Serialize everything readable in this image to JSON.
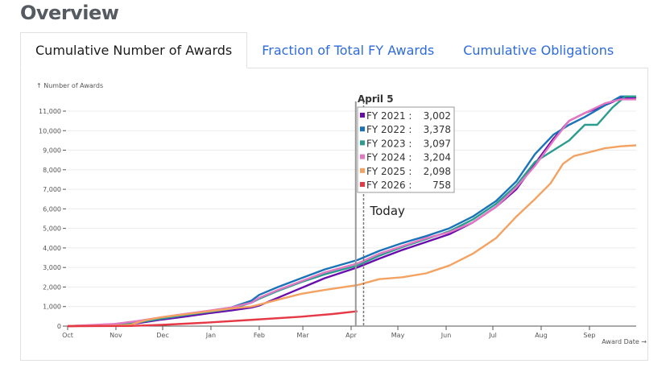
{
  "page": {
    "title": "Overview"
  },
  "tabs": [
    {
      "label": "Cumulative Number of Awards",
      "active": true
    },
    {
      "label": "Fraction of Total FY Awards",
      "active": false
    },
    {
      "label": "Cumulative Obligations",
      "active": false
    }
  ],
  "chart_data": {
    "type": "line",
    "title": "",
    "ylabel": "↑ Number of Awards",
    "xlabel": "Award Date →",
    "ylim": [
      0,
      11000
    ],
    "yticks": [
      0,
      1000,
      2000,
      3000,
      4000,
      5000,
      6000,
      7000,
      8000,
      9000,
      10000,
      11000
    ],
    "ytick_labels": [
      "0",
      "1,000",
      "2,000",
      "3,000",
      "4,000",
      "5,000",
      "6,000",
      "7,000",
      "8,000",
      "9,000",
      "10,000",
      "11,000"
    ],
    "xlim_days": [
      0,
      365
    ],
    "xticks_days": [
      0,
      31,
      61,
      92,
      123,
      151,
      182,
      212,
      243,
      273,
      304,
      335
    ],
    "xtick_labels": [
      "Oct",
      "Nov",
      "Dec",
      "Jan",
      "Feb",
      "Mar",
      "Apr",
      "May",
      "Jun",
      "Jul",
      "Aug",
      "Sep"
    ],
    "grid": true,
    "hover": {
      "label": "April 5",
      "day": 186,
      "values": [
        {
          "name": "FY 2021 :",
          "value": "3,002"
        },
        {
          "name": "FY 2022 :",
          "value": "3,378"
        },
        {
          "name": "FY 2023 :",
          "value": "3,097"
        },
        {
          "name": "FY 2024 :",
          "value": "3,204"
        },
        {
          "name": "FY 2025 :",
          "value": "2,098"
        },
        {
          "name": "FY 2026 :",
          "value": "758"
        }
      ]
    },
    "today": {
      "label": "Today",
      "day": 190
    },
    "series": [
      {
        "name": "FY 2021",
        "color": "#6a0dad",
        "points": [
          [
            0,
            0
          ],
          [
            30,
            40
          ],
          [
            45,
            150
          ],
          [
            60,
            330
          ],
          [
            75,
            480
          ],
          [
            90,
            650
          ],
          [
            105,
            800
          ],
          [
            118,
            950
          ],
          [
            123,
            1050
          ],
          [
            135,
            1450
          ],
          [
            150,
            1950
          ],
          [
            165,
            2450
          ],
          [
            186,
            3002
          ],
          [
            200,
            3450
          ],
          [
            215,
            3900
          ],
          [
            230,
            4300
          ],
          [
            245,
            4700
          ],
          [
            260,
            5300
          ],
          [
            275,
            6100
          ],
          [
            288,
            7000
          ],
          [
            300,
            8300
          ],
          [
            312,
            9600
          ],
          [
            322,
            10500
          ],
          [
            332,
            10900
          ],
          [
            345,
            11300
          ],
          [
            355,
            11650
          ],
          [
            365,
            11700
          ]
        ]
      },
      {
        "name": "FY 2022",
        "color": "#1a73b8",
        "points": [
          [
            0,
            0
          ],
          [
            30,
            80
          ],
          [
            45,
            200
          ],
          [
            60,
            400
          ],
          [
            75,
            580
          ],
          [
            90,
            760
          ],
          [
            105,
            950
          ],
          [
            118,
            1300
          ],
          [
            123,
            1600
          ],
          [
            135,
            2000
          ],
          [
            150,
            2450
          ],
          [
            165,
            2900
          ],
          [
            186,
            3378
          ],
          [
            200,
            3850
          ],
          [
            215,
            4250
          ],
          [
            230,
            4600
          ],
          [
            245,
            5000
          ],
          [
            260,
            5600
          ],
          [
            275,
            6400
          ],
          [
            288,
            7400
          ],
          [
            300,
            8800
          ],
          [
            312,
            9800
          ],
          [
            322,
            10300
          ],
          [
            332,
            10700
          ],
          [
            345,
            11300
          ],
          [
            355,
            11750
          ],
          [
            365,
            11750
          ]
        ]
      },
      {
        "name": "FY 2023",
        "color": "#2a9d8f",
        "points": [
          [
            0,
            0
          ],
          [
            30,
            60
          ],
          [
            45,
            180
          ],
          [
            60,
            380
          ],
          [
            75,
            560
          ],
          [
            90,
            720
          ],
          [
            105,
            880
          ],
          [
            118,
            1200
          ],
          [
            123,
            1400
          ],
          [
            135,
            1800
          ],
          [
            150,
            2250
          ],
          [
            165,
            2650
          ],
          [
            186,
            3097
          ],
          [
            200,
            3600
          ],
          [
            215,
            4050
          ],
          [
            230,
            4450
          ],
          [
            245,
            4850
          ],
          [
            260,
            5450
          ],
          [
            275,
            6250
          ],
          [
            288,
            7200
          ],
          [
            300,
            8400
          ],
          [
            312,
            9000
          ],
          [
            322,
            9500
          ],
          [
            332,
            10300
          ],
          [
            340,
            10300
          ],
          [
            350,
            11200
          ],
          [
            358,
            11750
          ],
          [
            365,
            11750
          ]
        ]
      },
      {
        "name": "FY 2024",
        "color": "#e377c2",
        "points": [
          [
            0,
            0
          ],
          [
            30,
            110
          ],
          [
            45,
            260
          ],
          [
            60,
            450
          ],
          [
            75,
            620
          ],
          [
            90,
            780
          ],
          [
            105,
            950
          ],
          [
            118,
            1200
          ],
          [
            123,
            1450
          ],
          [
            135,
            1850
          ],
          [
            150,
            2300
          ],
          [
            165,
            2750
          ],
          [
            186,
            3204
          ],
          [
            200,
            3700
          ],
          [
            215,
            4100
          ],
          [
            230,
            4500
          ],
          [
            245,
            4800
          ],
          [
            260,
            5300
          ],
          [
            275,
            6100
          ],
          [
            288,
            7100
          ],
          [
            300,
            8200
          ],
          [
            312,
            9500
          ],
          [
            322,
            10500
          ],
          [
            332,
            10900
          ],
          [
            345,
            11400
          ],
          [
            355,
            11600
          ],
          [
            365,
            11600
          ]
        ]
      },
      {
        "name": "FY 2025",
        "color": "#f4a261",
        "points": [
          [
            0,
            0
          ],
          [
            30,
            20
          ],
          [
            40,
            60
          ],
          [
            50,
            300
          ],
          [
            60,
            450
          ],
          [
            75,
            600
          ],
          [
            90,
            750
          ],
          [
            105,
            900
          ],
          [
            118,
            1000
          ],
          [
            123,
            1100
          ],
          [
            135,
            1350
          ],
          [
            150,
            1650
          ],
          [
            165,
            1850
          ],
          [
            186,
            2098
          ],
          [
            200,
            2400
          ],
          [
            215,
            2500
          ],
          [
            230,
            2700
          ],
          [
            245,
            3100
          ],
          [
            260,
            3700
          ],
          [
            275,
            4500
          ],
          [
            288,
            5600
          ],
          [
            300,
            6500
          ],
          [
            310,
            7300
          ],
          [
            318,
            8300
          ],
          [
            325,
            8700
          ],
          [
            335,
            8900
          ],
          [
            345,
            9100
          ],
          [
            355,
            9200
          ],
          [
            365,
            9250
          ]
        ]
      },
      {
        "name": "FY 2026",
        "color": "#e63946",
        "points": [
          [
            0,
            0
          ],
          [
            40,
            10
          ],
          [
            60,
            60
          ],
          [
            90,
            180
          ],
          [
            120,
            330
          ],
          [
            150,
            480
          ],
          [
            170,
            620
          ],
          [
            186,
            758
          ]
        ]
      }
    ]
  }
}
